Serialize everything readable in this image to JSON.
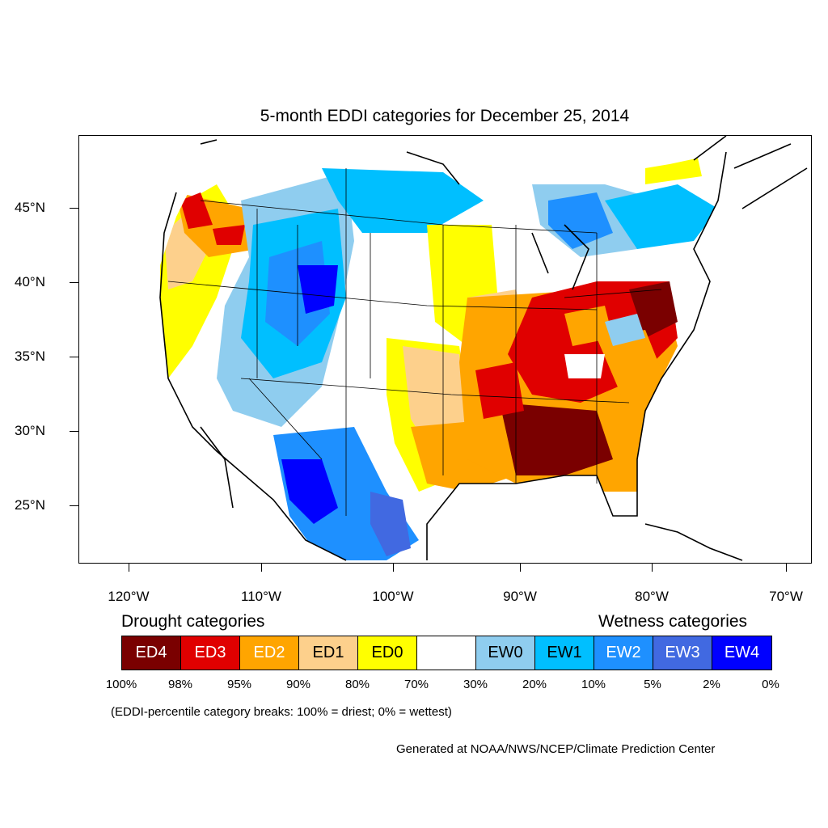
{
  "title": "5-month EDDI categories for December 25, 2014",
  "lat_labels": [
    "45°N",
    "40°N",
    "35°N",
    "30°N",
    "25°N"
  ],
  "lon_labels": [
    "120°W",
    "110°W",
    "100°W",
    "90°W",
    "80°W",
    "70°W"
  ],
  "legend": {
    "drought_heading": "Drought categories",
    "wetness_heading": "Wetness categories",
    "categories": [
      {
        "label": "ED4",
        "color": "#7a0000",
        "text_color": "#ffffff"
      },
      {
        "label": "ED3",
        "color": "#e00000",
        "text_color": "#ffffff"
      },
      {
        "label": "ED2",
        "color": "#ffa500",
        "text_color": "#ffffff"
      },
      {
        "label": "ED1",
        "color": "#fdd08c",
        "text_color": "#000000"
      },
      {
        "label": "ED0",
        "color": "#ffff00",
        "text_color": "#000000"
      },
      {
        "label": "",
        "color": "#ffffff",
        "text_color": "#000000"
      },
      {
        "label": "EW0",
        "color": "#8fcdef",
        "text_color": "#000000"
      },
      {
        "label": "EW1",
        "color": "#00bfff",
        "text_color": "#000000"
      },
      {
        "label": "EW2",
        "color": "#1e90ff",
        "text_color": "#ffffff"
      },
      {
        "label": "EW3",
        "color": "#4169e1",
        "text_color": "#ffffff"
      },
      {
        "label": "EW4",
        "color": "#0000ff",
        "text_color": "#ffffff"
      }
    ],
    "percent_breaks": [
      "100%",
      "98%",
      "95%",
      "90%",
      "80%",
      "70%",
      "30%",
      "20%",
      "10%",
      "5%",
      "2%",
      "0%"
    ]
  },
  "note": "(EDDI-percentile category breaks: 100% = driest; 0% = wettest)",
  "credit": "Generated at NOAA/NWS/NCEP/Climate Prediction Center"
}
